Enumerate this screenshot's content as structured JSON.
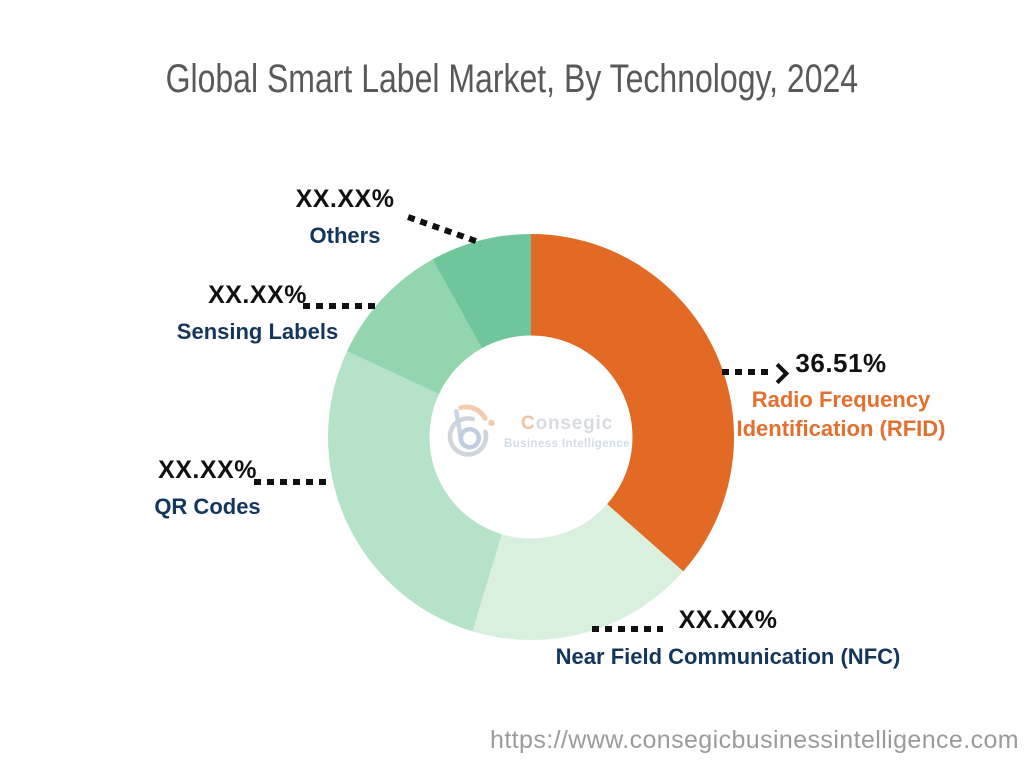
{
  "chart_data": {
    "type": "donut",
    "title": "Global Smart Label Market, By Technology, 2024",
    "start_angle_deg": 0,
    "direction": "clockwise",
    "inner_radius_ratio": 0.5,
    "legend_position": "callouts",
    "segments": [
      {
        "id": "rfid",
        "name": "Radio Frequency Identification (RFID)",
        "display_value": "36.51%",
        "pct": 36.51,
        "color": "#E26A24",
        "label_color": "#E3702E"
      },
      {
        "id": "nfc",
        "name": "Near Field Communication (NFC)",
        "display_value": "XX.XX%",
        "pct": 18.14,
        "color": "#D9F0DF",
        "label_color": "#14365C"
      },
      {
        "id": "qr-codes",
        "name": "QR Codes",
        "display_value": "XX.XX%",
        "pct": 27.3,
        "color": "#B6E3C7",
        "label_color": "#14365C"
      },
      {
        "id": "sensing-labels",
        "name": "Sensing Labels",
        "display_value": "XX.XX%",
        "pct": 10.0,
        "color": "#92D5AF",
        "label_color": "#14365C"
      },
      {
        "id": "others",
        "name": "Others",
        "display_value": "XX.XX%",
        "pct": 8.05,
        "color": "#6FC69A",
        "label_color": "#14365C"
      }
    ]
  },
  "logo": {
    "brand": "Consegic",
    "tagline_words": [
      "Business",
      "Intelligence"
    ]
  },
  "footer": {
    "url": "https://www.consegicbusinessintelligence.com"
  },
  "colors": {
    "accent_orange": "#E26A24",
    "navy": "#14365C",
    "title_gray": "#595959",
    "url_gray": "#9B9B9B",
    "leader_black": "#111111",
    "background": "#FFFFFF"
  }
}
